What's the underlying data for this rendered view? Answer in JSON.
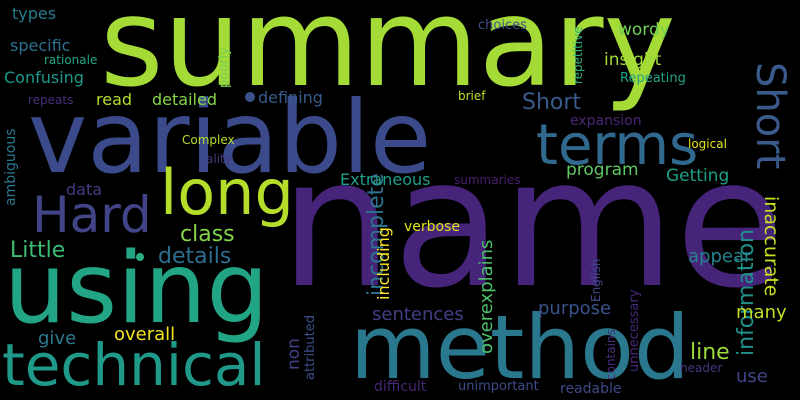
{
  "words": [
    {
      "text": "summary",
      "color": "#a5db36"
    },
    {
      "text": "name",
      "color": "#46247a"
    },
    {
      "text": "variable",
      "color": "#3b4a8a"
    },
    {
      "text": "using",
      "color": "#21a585"
    },
    {
      "text": "method",
      "color": "#2a788e"
    },
    {
      "text": "technical",
      "color": "#1f9a8a"
    },
    {
      "text": "terms",
      "color": "#31698e"
    },
    {
      "text": "long",
      "color": "#b5de2b"
    },
    {
      "text": "Hard",
      "color": "#414487"
    },
    {
      "text": "Short",
      "color": "#3a5a8c"
    },
    {
      "text": "understand",
      "color": "#8fd744"
    },
    {
      "text": "incomplete",
      "color": "#2c738e"
    },
    {
      "text": "information",
      "color": "#21918c"
    },
    {
      "text": "inaccurate",
      "color": "#c8e020"
    },
    {
      "text": "details",
      "color": "#2d6e8e"
    },
    {
      "text": "class",
      "color": "#86d549"
    },
    {
      "text": "Little",
      "color": "#3dbc74"
    },
    {
      "text": "line",
      "color": "#9bd93c"
    },
    {
      "text": "many",
      "color": "#c2df23"
    },
    {
      "text": "use",
      "color": "#404688"
    },
    {
      "text": "sentences",
      "color": "#423f85"
    },
    {
      "text": "purpose",
      "color": "#3a538b"
    },
    {
      "text": "overexplains",
      "color": "#4cc26c"
    },
    {
      "text": "including",
      "color": "#fde725"
    },
    {
      "text": "overall",
      "color": "#f1e51d"
    },
    {
      "text": "give",
      "color": "#2a7b8e"
    },
    {
      "text": "non",
      "color": "#424086"
    },
    {
      "text": "attributed",
      "color": "#3b518b"
    },
    {
      "text": "difficult",
      "color": "#482475"
    },
    {
      "text": "unimportant",
      "color": "#3e4c8a"
    },
    {
      "text": "readable",
      "color": "#3e4989"
    },
    {
      "text": "header",
      "color": "#453781"
    },
    {
      "text": "unnecessary",
      "color": "#482878"
    },
    {
      "text": "contains",
      "color": "#472d7b"
    },
    {
      "text": "English",
      "color": "#3f4889"
    },
    {
      "text": "verbose",
      "color": "#e2e418"
    },
    {
      "text": "appear",
      "color": "#26828e"
    },
    {
      "text": "program",
      "color": "#5ec962"
    },
    {
      "text": "Getting",
      "color": "#1fa088"
    },
    {
      "text": "summaries",
      "color": "#481f70"
    },
    {
      "text": "Extraneous",
      "color": "#1f9e89"
    },
    {
      "text": "data",
      "color": "#443a83"
    },
    {
      "text": "ambiguous",
      "color": "#2a768e"
    },
    {
      "text": "defining",
      "color": "#375b8d"
    },
    {
      "text": "detailed",
      "color": "#86d549"
    },
    {
      "text": "read",
      "color": "#b4de2c"
    },
    {
      "text": "Confusing",
      "color": "#1f988b"
    },
    {
      "text": "specific",
      "color": "#2c718e"
    },
    {
      "text": "types",
      "color": "#287c8e"
    },
    {
      "text": "rationale",
      "color": "#22a884"
    },
    {
      "text": "repeats",
      "color": "#472f7d"
    },
    {
      "text": "poorly",
      "color": "#75d054"
    },
    {
      "text": "choices",
      "color": "#3b528b"
    },
    {
      "text": "repetitive",
      "color": "#2fb47c"
    },
    {
      "text": "wordy",
      "color": "#70cf57"
    },
    {
      "text": "insight",
      "color": "#a2da37"
    },
    {
      "text": "Repeating",
      "color": "#20a386"
    },
    {
      "text": "expansion",
      "color": "#482576"
    },
    {
      "text": "brief",
      "color": "#c0df25"
    },
    {
      "text": "logical",
      "color": "#e5e419"
    },
    {
      "text": "Complex",
      "color": "#b8de29"
    },
    {
      "text": "ality",
      "color": "#46337f"
    }
  ],
  "dot_colors": [
    "#3a538b",
    "#29af7f"
  ]
}
